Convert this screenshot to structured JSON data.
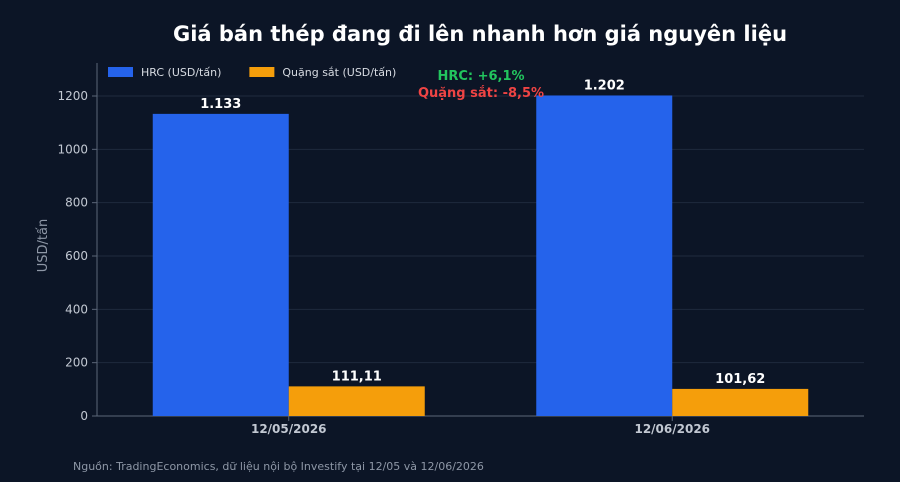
{
  "chart_data": {
    "type": "bar",
    "title": "Giá bán thép đang đi lên nhanh hơn giá nguyên liệu",
    "xlabel": "",
    "ylabel": "USD/tấn",
    "ylim": [
      0,
      1200
    ],
    "yticks": [
      0,
      200,
      400,
      600,
      800,
      1000,
      1200
    ],
    "categories": [
      "12/05/2026",
      "12/06/2026"
    ],
    "series": [
      {
        "name": "HRC (USD/tấn)",
        "values": [
          1133,
          1202
        ],
        "labels": [
          "1.133",
          "1.202"
        ],
        "color": "#2563eb"
      },
      {
        "name": "Quặng sắt (USD/tấn)",
        "values": [
          111.11,
          101.62
        ],
        "labels": [
          "111,11",
          "101,62"
        ],
        "color": "#f59e0b"
      }
    ],
    "legend_position": "top-left",
    "grid": true,
    "annotations": [
      {
        "text": "HRC: +6,1%",
        "color": "#22c55e"
      },
      {
        "text": "Quặng sắt: -8,5%",
        "color": "#ef4444"
      }
    ]
  },
  "source": "Nguồn: TradingEconomics, dữ liệu nội bộ Investify tại 12/05 và 12/06/2026"
}
